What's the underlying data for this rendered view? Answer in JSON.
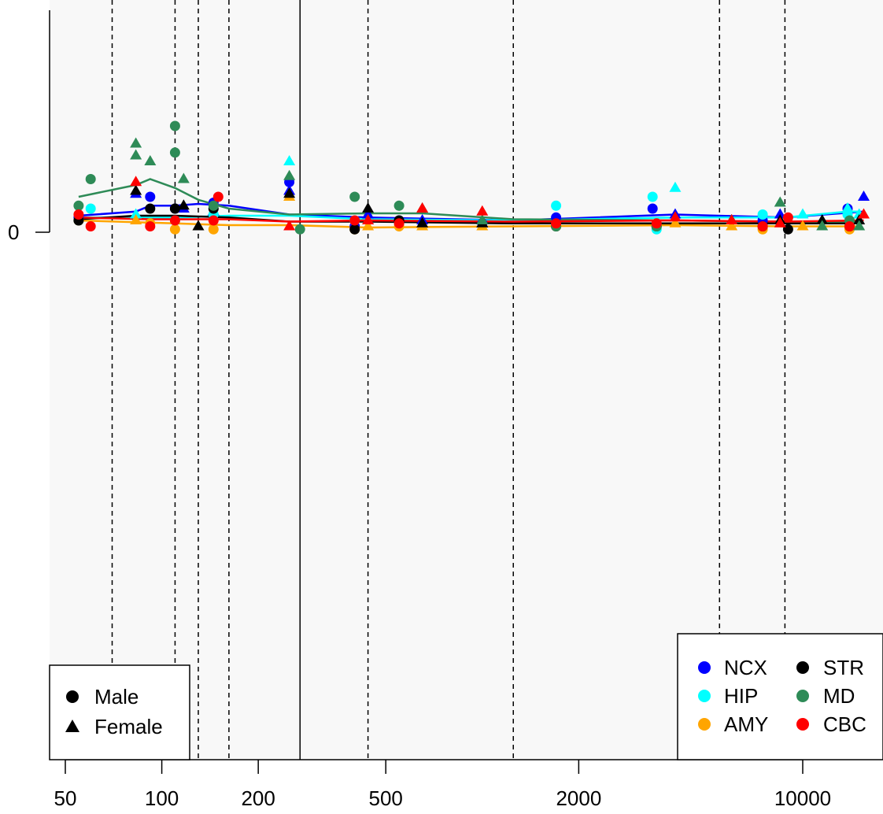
{
  "chart_data": {
    "type": "scatter",
    "title": "",
    "xlabel": "",
    "ylabel": "",
    "x_scale": "log",
    "x_ticks": [
      50,
      100,
      200,
      500,
      2000,
      10000
    ],
    "x_tick_labels": [
      "50",
      "100",
      "200",
      "500",
      "2000",
      "10000"
    ],
    "xlim": [
      45,
      17000
    ],
    "y_ticks": [
      0
    ],
    "y_tick_labels": [
      "0"
    ],
    "ylim": [
      -1.0,
      0.4
    ],
    "background": "#f8f8f8",
    "grid": false,
    "vlines": [
      {
        "x": 70,
        "style": "dashed"
      },
      {
        "x": 110,
        "style": "dashed"
      },
      {
        "x": 130,
        "style": "dashed"
      },
      {
        "x": 162,
        "style": "dashed"
      },
      {
        "x": 270,
        "style": "solid"
      },
      {
        "x": 440,
        "style": "dashed"
      },
      {
        "x": 1250,
        "style": "dashed"
      },
      {
        "x": 5500,
        "style": "dashed"
      },
      {
        "x": 8800,
        "style": "dashed"
      }
    ],
    "series": [
      {
        "name": "NCX",
        "color": "#0000ff",
        "male": [
          [
            55,
            0.025
          ],
          [
            92,
            0.06
          ],
          [
            110,
            0.04
          ],
          [
            145,
            0.05
          ],
          [
            250,
            0.085
          ],
          [
            400,
            0.01
          ],
          [
            550,
            0.02
          ],
          [
            1000,
            0.015
          ],
          [
            1700,
            0.025
          ],
          [
            3400,
            0.04
          ],
          [
            7500,
            0.02
          ],
          [
            13800,
            0.04
          ]
        ],
        "female": [
          [
            83,
            0.065
          ],
          [
            117,
            0.04
          ],
          [
            145,
            0.035
          ],
          [
            250,
            0.07
          ],
          [
            440,
            0.03
          ],
          [
            650,
            0.02
          ],
          [
            1000,
            0.015
          ],
          [
            4000,
            0.03
          ],
          [
            6000,
            0.02
          ],
          [
            8500,
            0.03
          ],
          [
            15500,
            0.06
          ]
        ],
        "line": [
          [
            55,
            0.028
          ],
          [
            83,
            0.035
          ],
          [
            92,
            0.045
          ],
          [
            110,
            0.045
          ],
          [
            130,
            0.048
          ],
          [
            162,
            0.045
          ],
          [
            250,
            0.03
          ],
          [
            440,
            0.025
          ],
          [
            1250,
            0.02
          ],
          [
            4000,
            0.03
          ],
          [
            8800,
            0.025
          ],
          [
            15500,
            0.035
          ]
        ]
      },
      {
        "name": "HIP",
        "color": "#00ffff",
        "male": [
          [
            55,
            0.02
          ],
          [
            60,
            0.04
          ],
          [
            110,
            0.02
          ],
          [
            145,
            0.03
          ],
          [
            400,
            0.02
          ],
          [
            550,
            0.015
          ],
          [
            1700,
            0.045
          ],
          [
            3400,
            0.06
          ],
          [
            3500,
            0.005
          ],
          [
            7500,
            0.03
          ],
          [
            13800,
            0.03
          ]
        ],
        "female": [
          [
            83,
            0.03
          ],
          [
            250,
            0.12
          ],
          [
            440,
            0.02
          ],
          [
            4000,
            0.075
          ],
          [
            6000,
            0.02
          ],
          [
            10000,
            0.03
          ],
          [
            13800,
            0.04
          ],
          [
            15000,
            0.03
          ]
        ],
        "line": [
          [
            55,
            0.025
          ],
          [
            110,
            0.025
          ],
          [
            162,
            0.028
          ],
          [
            250,
            0.028
          ],
          [
            440,
            0.022
          ],
          [
            1250,
            0.02
          ],
          [
            4000,
            0.025
          ],
          [
            8800,
            0.025
          ],
          [
            13800,
            0.035
          ],
          [
            15000,
            0.035
          ]
        ]
      },
      {
        "name": "AMY",
        "color": "#ffa500",
        "male": [
          [
            55,
            0.02
          ],
          [
            92,
            0.015
          ],
          [
            110,
            0.005
          ],
          [
            145,
            0.005
          ],
          [
            400,
            0.005
          ],
          [
            550,
            0.01
          ],
          [
            1700,
            0.01
          ],
          [
            3500,
            0.01
          ],
          [
            7500,
            0.005
          ],
          [
            14000,
            0.005
          ]
        ],
        "female": [
          [
            83,
            0.02
          ],
          [
            130,
            0.01
          ],
          [
            250,
            0.06
          ],
          [
            440,
            0.01
          ],
          [
            650,
            0.01
          ],
          [
            1000,
            0.01
          ],
          [
            4000,
            0.015
          ],
          [
            6000,
            0.01
          ],
          [
            10000,
            0.01
          ]
        ],
        "line": [
          [
            55,
            0.02
          ],
          [
            110,
            0.015
          ],
          [
            162,
            0.012
          ],
          [
            250,
            0.012
          ],
          [
            440,
            0.008
          ],
          [
            1250,
            0.01
          ],
          [
            4000,
            0.012
          ],
          [
            8800,
            0.01
          ],
          [
            15000,
            0.01
          ]
        ]
      },
      {
        "name": "STR",
        "color": "#000000",
        "male": [
          [
            55,
            0.02
          ],
          [
            92,
            0.04
          ],
          [
            110,
            0.04
          ],
          [
            145,
            0.04
          ],
          [
            400,
            0.005
          ],
          [
            550,
            0.02
          ],
          [
            1700,
            0.01
          ],
          [
            3500,
            0.01
          ],
          [
            7500,
            0.01
          ],
          [
            9000,
            0.005
          ],
          [
            14000,
            0.01
          ]
        ],
        "female": [
          [
            83,
            0.07
          ],
          [
            117,
            0.045
          ],
          [
            130,
            0.01
          ],
          [
            250,
            0.065
          ],
          [
            440,
            0.04
          ],
          [
            650,
            0.015
          ],
          [
            1000,
            0.015
          ],
          [
            6000,
            0.02
          ],
          [
            8500,
            0.02
          ],
          [
            11500,
            0.02
          ],
          [
            15000,
            0.02
          ]
        ],
        "line": [
          [
            55,
            0.022
          ],
          [
            83,
            0.028
          ],
          [
            110,
            0.028
          ],
          [
            162,
            0.025
          ],
          [
            250,
            0.018
          ],
          [
            440,
            0.018
          ],
          [
            1250,
            0.015
          ],
          [
            4000,
            0.015
          ],
          [
            8800,
            0.015
          ],
          [
            15000,
            0.015
          ]
        ]
      },
      {
        "name": "MD",
        "color": "#2e8b57",
        "male": [
          [
            55,
            0.045
          ],
          [
            60,
            0.09
          ],
          [
            110,
            0.135
          ],
          [
            110,
            0.18
          ],
          [
            145,
            0.045
          ],
          [
            270,
            0.005
          ],
          [
            400,
            0.06
          ],
          [
            550,
            0.045
          ],
          [
            1700,
            0.01
          ],
          [
            3500,
            0.01
          ],
          [
            14000,
            0.02
          ]
        ],
        "female": [
          [
            83,
            0.15
          ],
          [
            83,
            0.13
          ],
          [
            92,
            0.12
          ],
          [
            117,
            0.09
          ],
          [
            250,
            0.095
          ],
          [
            440,
            0.02
          ],
          [
            650,
            0.04
          ],
          [
            1000,
            0.02
          ],
          [
            8500,
            0.05
          ],
          [
            11500,
            0.01
          ],
          [
            15000,
            0.01
          ]
        ],
        "line": [
          [
            55,
            0.06
          ],
          [
            83,
            0.08
          ],
          [
            92,
            0.09
          ],
          [
            110,
            0.075
          ],
          [
            130,
            0.055
          ],
          [
            162,
            0.04
          ],
          [
            250,
            0.03
          ],
          [
            440,
            0.032
          ],
          [
            650,
            0.032
          ],
          [
            1250,
            0.022
          ],
          [
            4000,
            0.02
          ],
          [
            8800,
            0.018
          ],
          [
            15000,
            0.018
          ]
        ]
      },
      {
        "name": "CBC",
        "color": "#ff0000",
        "male": [
          [
            55,
            0.03
          ],
          [
            60,
            0.01
          ],
          [
            92,
            0.01
          ],
          [
            110,
            0.02
          ],
          [
            145,
            0.02
          ],
          [
            150,
            0.06
          ],
          [
            400,
            0.02
          ],
          [
            550,
            0.015
          ],
          [
            1700,
            0.015
          ],
          [
            3500,
            0.015
          ],
          [
            7500,
            0.01
          ],
          [
            9000,
            0.025
          ],
          [
            14000,
            0.01
          ]
        ],
        "female": [
          [
            83,
            0.085
          ],
          [
            250,
            0.01
          ],
          [
            440,
            0.02
          ],
          [
            650,
            0.04
          ],
          [
            1000,
            0.035
          ],
          [
            4000,
            0.025
          ],
          [
            6000,
            0.02
          ],
          [
            8500,
            0.015
          ],
          [
            15500,
            0.03
          ]
        ],
        "line": [
          [
            55,
            0.025
          ],
          [
            92,
            0.022
          ],
          [
            110,
            0.022
          ],
          [
            162,
            0.022
          ],
          [
            250,
            0.018
          ],
          [
            440,
            0.02
          ],
          [
            1250,
            0.018
          ],
          [
            4000,
            0.02
          ],
          [
            8800,
            0.018
          ],
          [
            15500,
            0.02
          ]
        ]
      }
    ],
    "legend_shape": {
      "position": "bottom-left",
      "entries": [
        {
          "label": "Male",
          "marker": "circle"
        },
        {
          "label": "Female",
          "marker": "triangle"
        }
      ]
    },
    "legend_color": {
      "position": "bottom-right",
      "entries": [
        {
          "label": "NCX",
          "color": "#0000ff"
        },
        {
          "label": "STR",
          "color": "#000000"
        },
        {
          "label": "HIP",
          "color": "#00ffff"
        },
        {
          "label": "MD",
          "color": "#2e8b57"
        },
        {
          "label": "AMY",
          "color": "#ffa500"
        },
        {
          "label": "CBC",
          "color": "#ff0000"
        }
      ]
    }
  }
}
